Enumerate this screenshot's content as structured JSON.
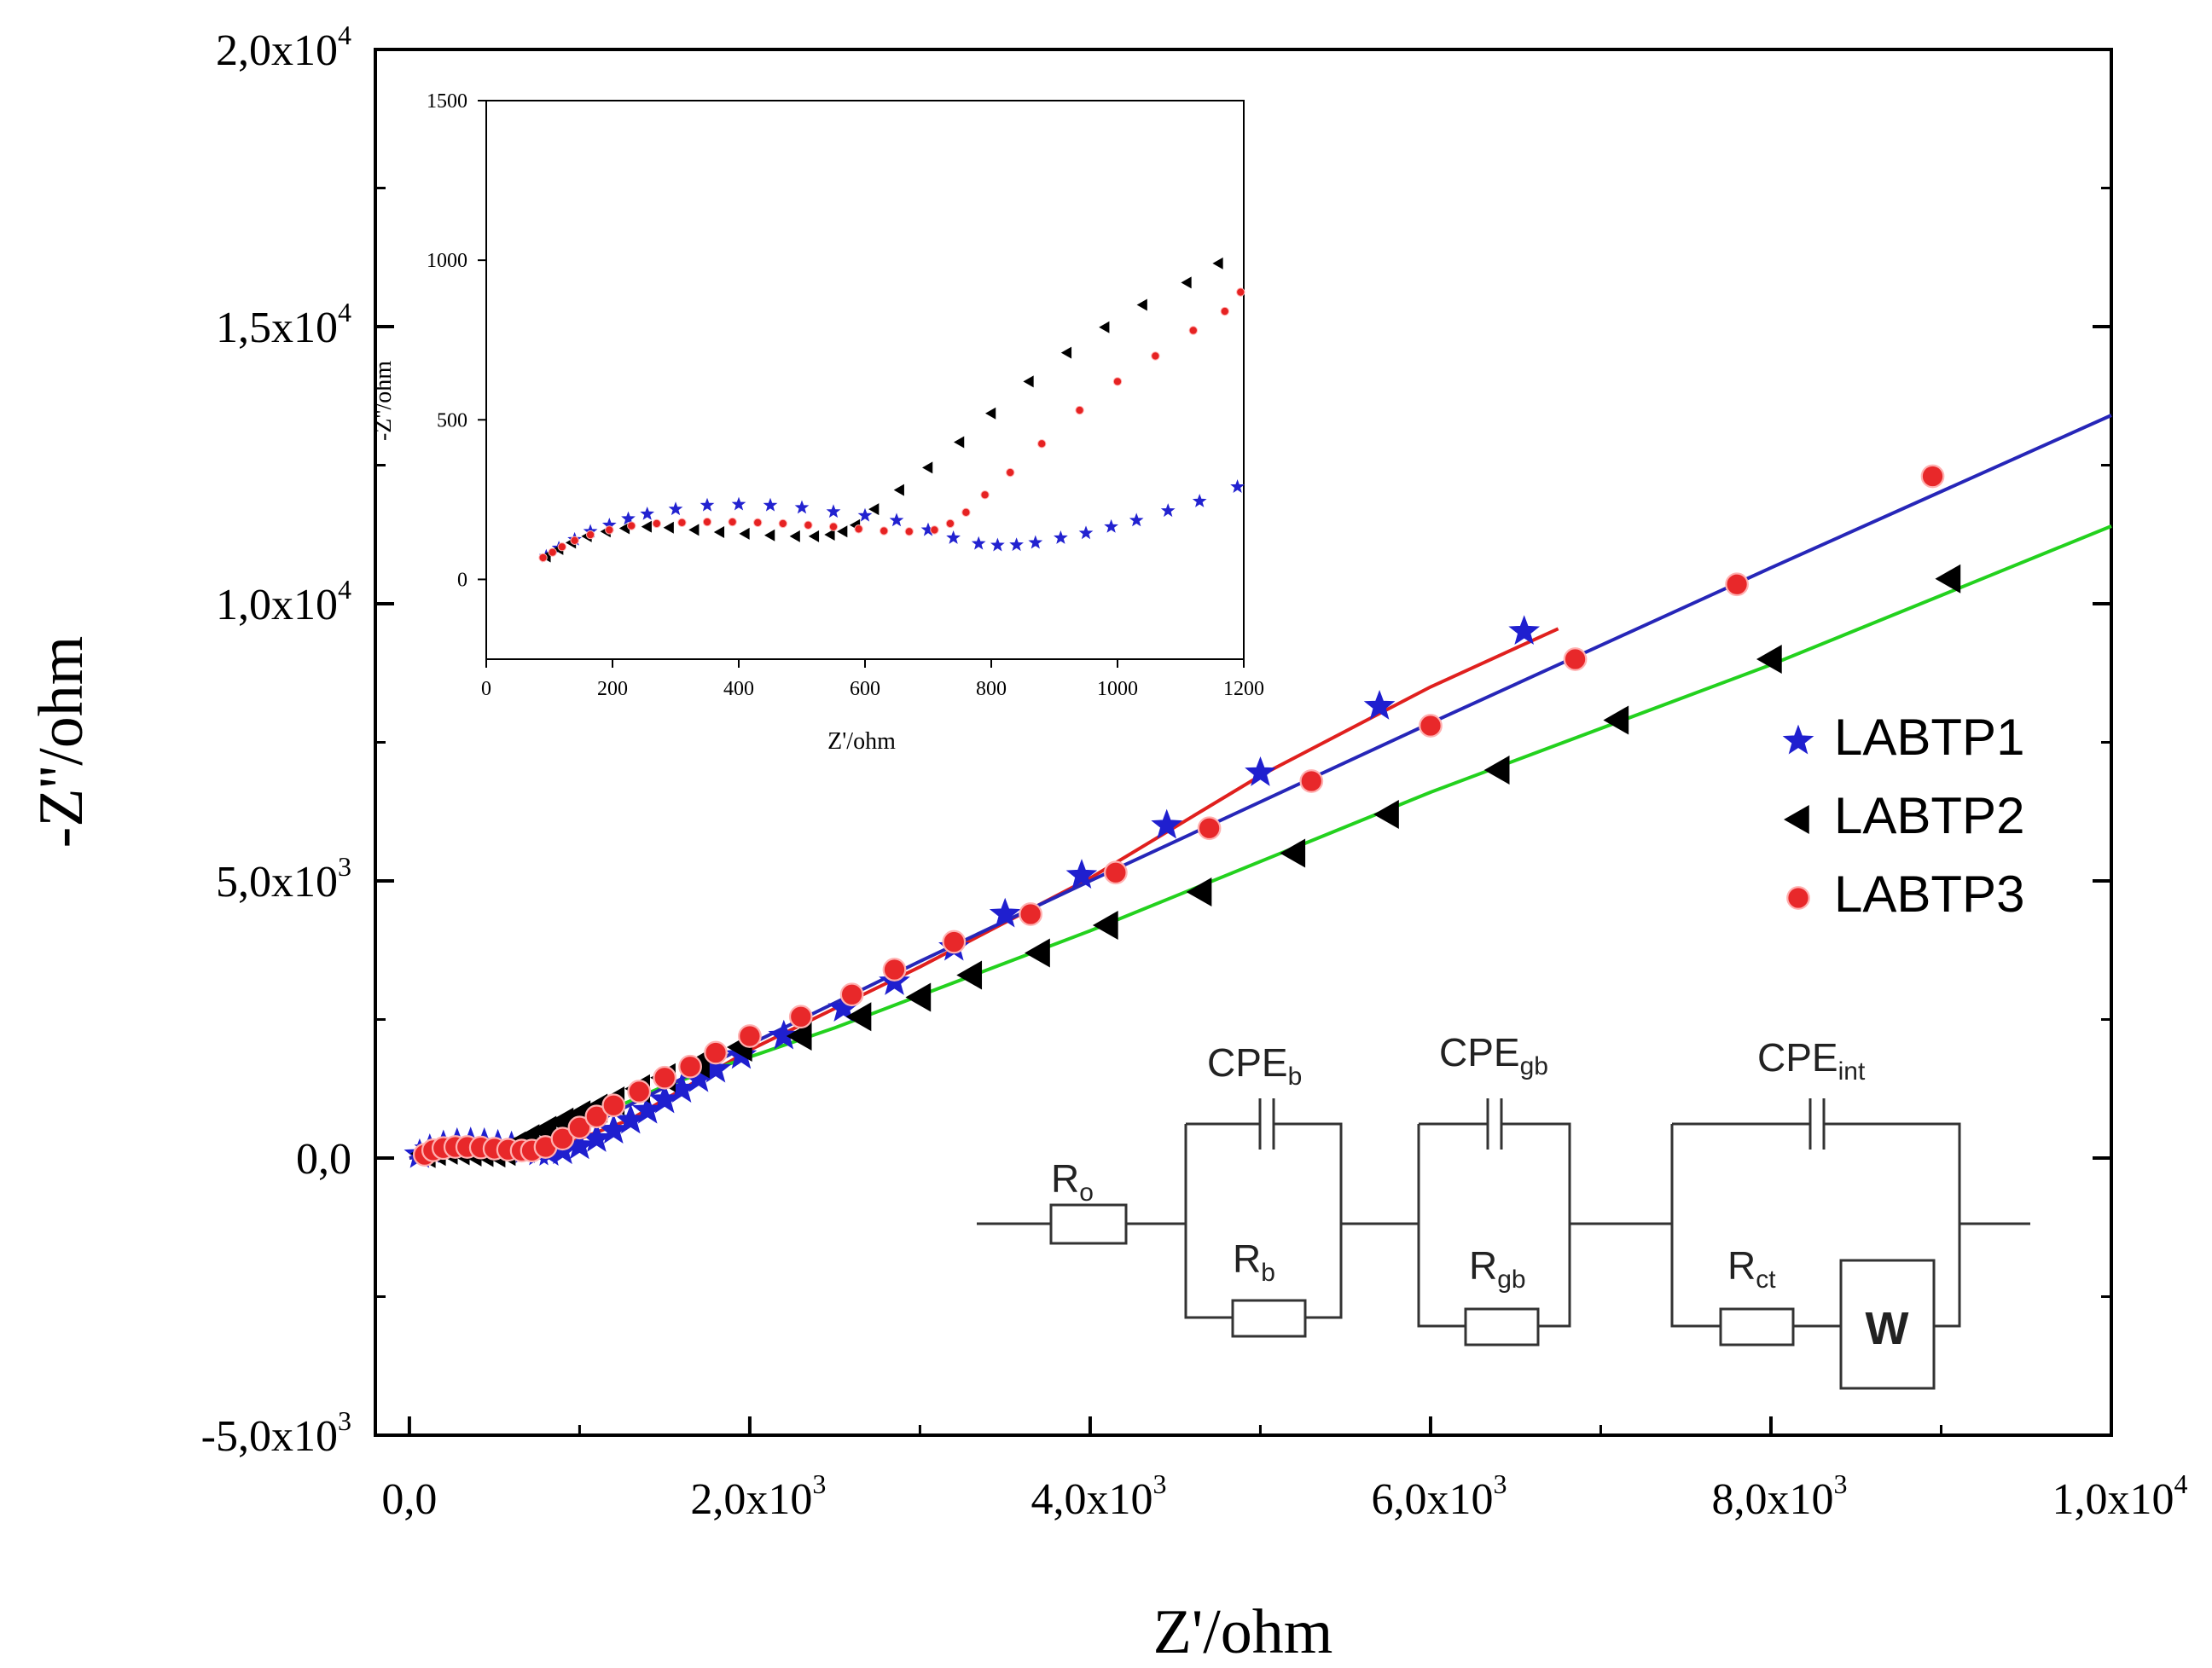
{
  "chart_data": [
    {
      "id": "main",
      "type": "scatter",
      "title": "",
      "xlabel": "Z'/ohm",
      "ylabel": "-Z''/ohm",
      "xlim": [
        -200,
        10000
      ],
      "ylim": [
        -5000,
        20000
      ],
      "x_ticks": [
        0,
        2000,
        4000,
        6000,
        8000,
        10000
      ],
      "x_tick_labels": [
        {
          "m": "0,0",
          "e": ""
        },
        {
          "m": "2,0x10",
          "e": "3"
        },
        {
          "m": "4,0x10",
          "e": "3"
        },
        {
          "m": "6,0x10",
          "e": "3"
        },
        {
          "m": "8,0x10",
          "e": "3"
        },
        {
          "m": "1,0x10",
          "e": "4"
        }
      ],
      "y_ticks": [
        -5000,
        0,
        5000,
        10000,
        15000,
        20000
      ],
      "y_tick_labels": [
        {
          "m": "-5,0x10",
          "e": "3"
        },
        {
          "m": "0,0",
          "e": ""
        },
        {
          "m": "5,0x10",
          "e": "3"
        },
        {
          "m": "1,0x10",
          "e": "4"
        },
        {
          "m": "1,5x10",
          "e": "4"
        },
        {
          "m": "2,0x10",
          "e": "4"
        }
      ],
      "legend_position": "right",
      "series": [
        {
          "name": "LABTP1",
          "marker": "star",
          "color": "#1f1fcf",
          "fit_color": "#e0201e",
          "points": [
            [
              60,
              60
            ],
            [
              120,
              150
            ],
            [
              200,
              220
            ],
            [
              280,
              260
            ],
            [
              360,
              270
            ],
            [
              440,
              260
            ],
            [
              520,
              230
            ],
            [
              600,
              200
            ],
            [
              680,
              150
            ],
            [
              760,
              110
            ],
            [
              820,
              100
            ],
            [
              900,
              130
            ],
            [
              1000,
              220
            ],
            [
              1100,
              350
            ],
            [
              1200,
              500
            ],
            [
              1300,
              680
            ],
            [
              1400,
              860
            ],
            [
              1500,
              1050
            ],
            [
              1600,
              1240
            ],
            [
              1700,
              1430
            ],
            [
              1800,
              1600
            ],
            [
              1950,
              1850
            ],
            [
              2200,
              2200
            ],
            [
              2550,
              2700
            ],
            [
              2850,
              3180
            ],
            [
              3200,
              3800
            ],
            [
              3500,
              4400
            ],
            [
              3950,
              5100
            ],
            [
              4450,
              6000
            ],
            [
              5000,
              6950
            ],
            [
              5700,
              8150
            ],
            [
              6550,
              9500
            ]
          ],
          "fit": [
            [
              0,
              0
            ],
            [
              300,
              260
            ],
            [
              800,
              110
            ],
            [
              1300,
              700
            ],
            [
              2000,
              1950
            ],
            [
              3000,
              3450
            ],
            [
              4000,
              5050
            ],
            [
              5000,
              6900
            ],
            [
              6000,
              8500
            ],
            [
              6750,
              9550
            ]
          ]
        },
        {
          "name": "LABTP2",
          "marker": "triangle-left",
          "color": "#000000",
          "fit_color": "#23d11e",
          "points": [
            [
              90,
              80
            ],
            [
              150,
              120
            ],
            [
              220,
              140
            ],
            [
              290,
              130
            ],
            [
              360,
              110
            ],
            [
              430,
              100
            ],
            [
              500,
              90
            ],
            [
              560,
              120
            ],
            [
              620,
              220
            ],
            [
              700,
              350
            ],
            [
              800,
              500
            ],
            [
              900,
              650
            ],
            [
              1000,
              780
            ],
            [
              1100,
              900
            ],
            [
              1200,
              1030
            ],
            [
              1350,
              1250
            ],
            [
              1500,
              1450
            ],
            [
              1700,
              1700
            ],
            [
              1950,
              2000
            ],
            [
              2300,
              2200
            ],
            [
              2650,
              2550
            ],
            [
              3000,
              2900
            ],
            [
              3300,
              3300
            ],
            [
              3700,
              3700
            ],
            [
              4100,
              4200
            ],
            [
              4650,
              4800
            ],
            [
              5200,
              5500
            ],
            [
              5750,
              6200
            ],
            [
              6400,
              7000
            ],
            [
              7100,
              7900
            ],
            [
              8000,
              9000
            ],
            [
              9050,
              10450
            ]
          ],
          "fit": [
            [
              600,
              100
            ],
            [
              1500,
              1300
            ],
            [
              2500,
              2350
            ],
            [
              4000,
              4100
            ],
            [
              6000,
              6600
            ],
            [
              8000,
              8900
            ],
            [
              10000,
              11400
            ]
          ]
        },
        {
          "name": "LABTP3",
          "marker": "circle",
          "color": "#e8282a",
          "fit_color": "#2626b8",
          "points": [
            [
              90,
              60
            ],
            [
              140,
              140
            ],
            [
              200,
              180
            ],
            [
              270,
              200
            ],
            [
              340,
              200
            ],
            [
              420,
              190
            ],
            [
              500,
              170
            ],
            [
              580,
              150
            ],
            [
              660,
              135
            ],
            [
              720,
              135
            ],
            [
              800,
              200
            ],
            [
              900,
              350
            ],
            [
              1000,
              550
            ],
            [
              1100,
              750
            ],
            [
              1200,
              950
            ],
            [
              1350,
              1200
            ],
            [
              1500,
              1450
            ],
            [
              1650,
              1650
            ],
            [
              1800,
              1900
            ],
            [
              2000,
              2200
            ],
            [
              2300,
              2550
            ],
            [
              2600,
              2950
            ],
            [
              2850,
              3400
            ],
            [
              3200,
              3900
            ],
            [
              3650,
              4400
            ],
            [
              4150,
              5150
            ],
            [
              4700,
              5950
            ],
            [
              5300,
              6800
            ],
            [
              6000,
              7800
            ],
            [
              6850,
              9000
            ],
            [
              7800,
              10350
            ],
            [
              8950,
              12300
            ]
          ],
          "fit": [
            [
              0,
              0
            ],
            [
              500,
              200
            ],
            [
              1000,
              500
            ],
            [
              2000,
              2050
            ],
            [
              3000,
              3550
            ],
            [
              4000,
              5000
            ],
            [
              6000,
              7850
            ],
            [
              8000,
              10650
            ],
            [
              10000,
              13400
            ]
          ]
        }
      ]
    },
    {
      "id": "inset",
      "type": "scatter",
      "title": "",
      "xlabel": "Z'/ohm",
      "ylabel": "-Z''/ohm",
      "xlim": [
        0,
        1200
      ],
      "ylim": [
        -250,
        1500
      ],
      "x_ticks": [
        0,
        200,
        400,
        600,
        800,
        1000,
        1200
      ],
      "x_tick_labels": [
        "0",
        "200",
        "400",
        "600",
        "800",
        "1000",
        "1200"
      ],
      "y_ticks": [
        0,
        500,
        1000,
        1500
      ],
      "y_tick_labels": [
        "0",
        "500",
        "1000",
        "1500"
      ],
      "series": [
        {
          "name": "LABTP1",
          "marker": "star",
          "color": "#2222d0",
          "points": [
            [
              95,
              72
            ],
            [
              115,
              98
            ],
            [
              140,
              125
            ],
            [
              165,
              150
            ],
            [
              195,
              170
            ],
            [
              225,
              190
            ],
            [
              255,
              205
            ],
            [
              300,
              220
            ],
            [
              350,
              232
            ],
            [
              400,
              235
            ],
            [
              450,
              232
            ],
            [
              500,
              225
            ],
            [
              550,
              212
            ],
            [
              600,
              200
            ],
            [
              650,
              185
            ],
            [
              700,
              155
            ],
            [
              740,
              130
            ],
            [
              780,
              112
            ],
            [
              810,
              107
            ],
            [
              840,
              108
            ],
            [
              870,
              115
            ],
            [
              910,
              130
            ],
            [
              950,
              145
            ],
            [
              990,
              165
            ],
            [
              1030,
              185
            ],
            [
              1080,
              215
            ],
            [
              1130,
              245
            ],
            [
              1190,
              290
            ]
          ]
        },
        {
          "name": "LABTP2",
          "marker": "triangle-left",
          "color": "#000000",
          "points": [
            [
              95,
              72
            ],
            [
              115,
              95
            ],
            [
              135,
              115
            ],
            [
              160,
              135
            ],
            [
              190,
              150
            ],
            [
              220,
              160
            ],
            [
              255,
              165
            ],
            [
              290,
              162
            ],
            [
              330,
              155
            ],
            [
              370,
              148
            ],
            [
              410,
              143
            ],
            [
              450,
              138
            ],
            [
              490,
              135
            ],
            [
              520,
              135
            ],
            [
              545,
              140
            ],
            [
              565,
              150
            ],
            [
              585,
              170
            ],
            [
              615,
              220
            ],
            [
              655,
              280
            ],
            [
              700,
              350
            ],
            [
              750,
              430
            ],
            [
              800,
              520
            ],
            [
              860,
              620
            ],
            [
              920,
              710
            ],
            [
              980,
              790
            ],
            [
              1040,
              860
            ],
            [
              1110,
              930
            ],
            [
              1160,
              990
            ]
          ]
        },
        {
          "name": "LABTP3",
          "marker": "circle",
          "color": "#e62222",
          "points": [
            [
              90,
              68
            ],
            [
              105,
              85
            ],
            [
              120,
              102
            ],
            [
              140,
              122
            ],
            [
              165,
              140
            ],
            [
              195,
              155
            ],
            [
              230,
              168
            ],
            [
              270,
              175
            ],
            [
              310,
              178
            ],
            [
              350,
              180
            ],
            [
              390,
              180
            ],
            [
              430,
              178
            ],
            [
              470,
              175
            ],
            [
              510,
              170
            ],
            [
              550,
              165
            ],
            [
              590,
              158
            ],
            [
              630,
              152
            ],
            [
              670,
              150
            ],
            [
              710,
              155
            ],
            [
              735,
              175
            ],
            [
              760,
              210
            ],
            [
              790,
              265
            ],
            [
              830,
              335
            ],
            [
              880,
              425
            ],
            [
              940,
              530
            ],
            [
              1000,
              620
            ],
            [
              1060,
              700
            ],
            [
              1120,
              780
            ],
            [
              1170,
              840
            ],
            [
              1195,
              900
            ]
          ]
        }
      ]
    }
  ],
  "legend": [
    {
      "label": "LABTP1",
      "marker": "star",
      "color": "#1f1fcf"
    },
    {
      "label": "LABTP2",
      "marker": "triangle-left",
      "color": "#000000"
    },
    {
      "label": "LABTP3",
      "marker": "circle",
      "color": "#e8282a"
    }
  ],
  "circuit": {
    "r0": {
      "main": "R",
      "sub": "o"
    },
    "cpe_b": {
      "main": "CPE",
      "sub": "b"
    },
    "r_b": {
      "main": "R",
      "sub": "b"
    },
    "cpe_gb": {
      "main": "CPE",
      "sub": "gb"
    },
    "r_gb": {
      "main": "R",
      "sub": "gb"
    },
    "cpe_int": {
      "main": "CPE",
      "sub": "int"
    },
    "r_ct": {
      "main": "R",
      "sub": "ct"
    },
    "w": "W"
  }
}
